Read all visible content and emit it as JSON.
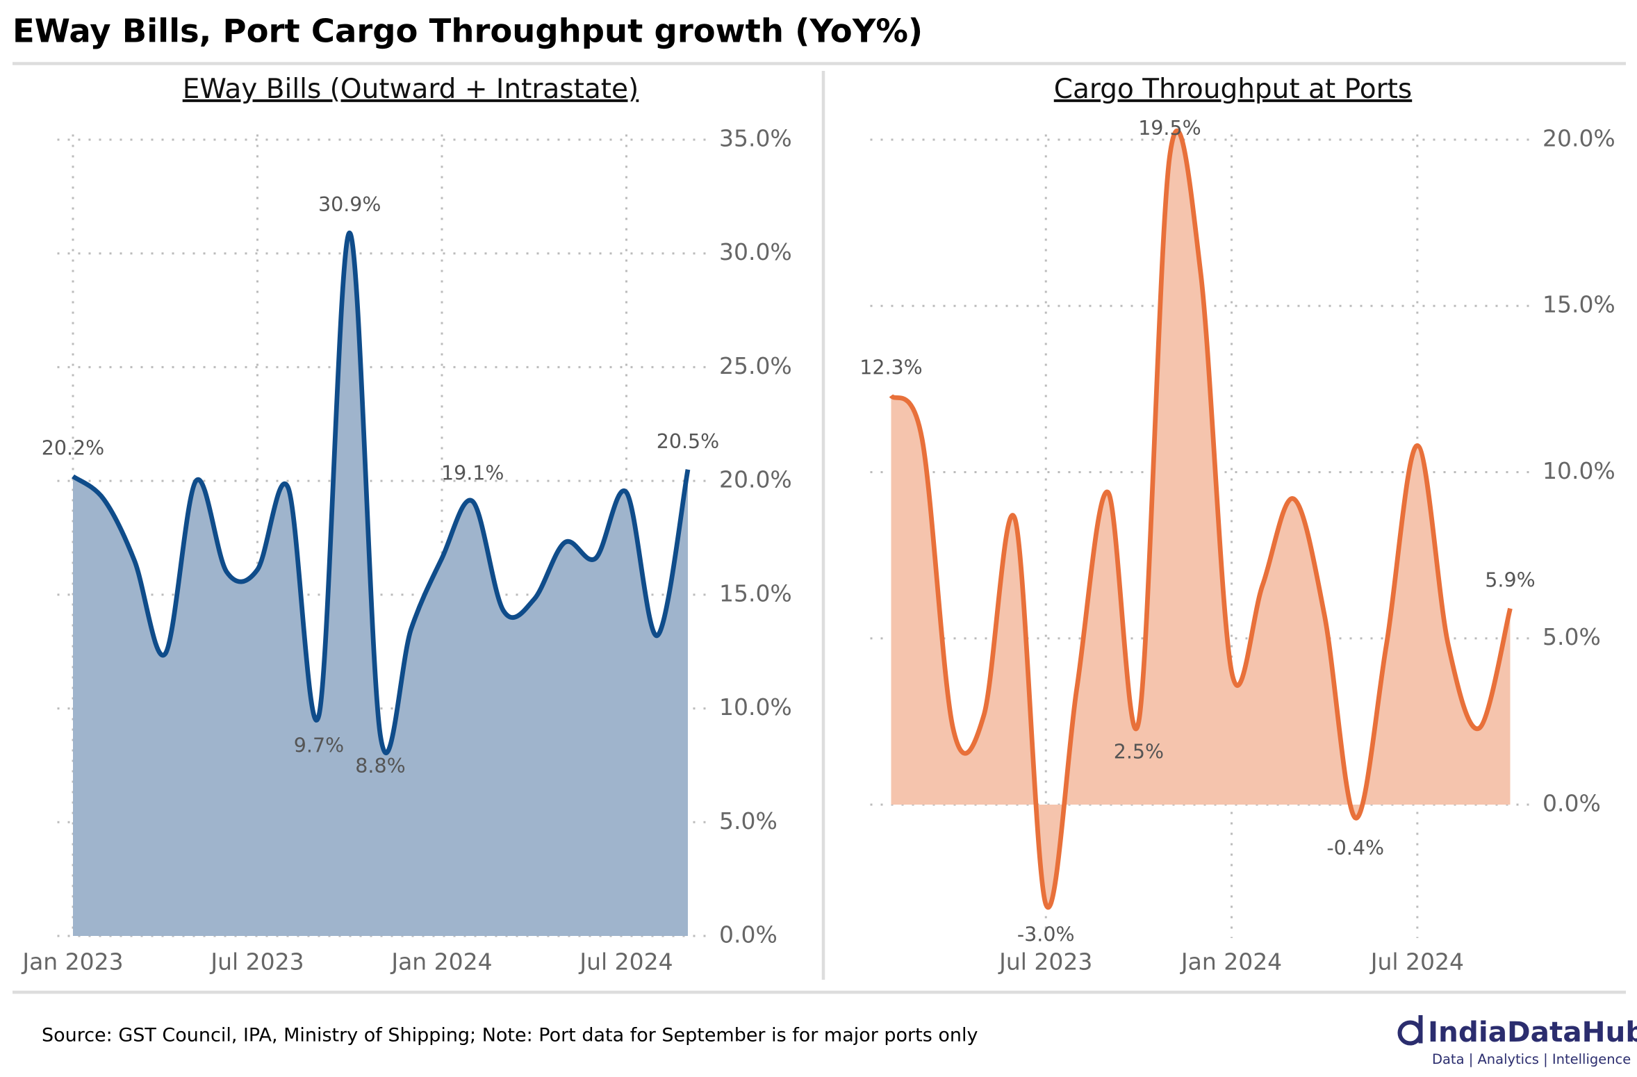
{
  "title": "EWay Bills, Port Cargo Throughput growth (YoY%)",
  "source": "Source: GST Council, IPA, Ministry of Shipping; Note: Port data for September is for major ports only",
  "logo": {
    "name": "IndiaDataHub",
    "tagline": "Data | Analytics | Intelligence"
  },
  "chart_data": [
    {
      "type": "area",
      "title": "EWay Bills (Outward + Intrastate)",
      "categories": [
        "Jan 2023",
        null,
        null,
        null,
        null,
        null,
        "Jul 2023",
        null,
        null,
        null,
        null,
        null,
        "Jan 2024",
        null,
        null,
        null,
        null,
        null,
        "Jul 2024",
        null,
        null
      ],
      "series": [
        {
          "name": "EWay Bills",
          "color": "#0f4c8a",
          "fill": "#9fb4cc",
          "values": [
            20.2,
            19.2,
            16.5,
            12.4,
            20.0,
            16.0,
            16.1,
            19.7,
            9.7,
            30.9,
            8.8,
            13.5,
            16.6,
            19.1,
            14.3,
            14.8,
            17.3,
            16.6,
            19.5,
            13.2,
            20.5
          ],
          "value_labels": [
            "20.2%",
            null,
            null,
            null,
            null,
            null,
            null,
            null,
            "9.7%",
            "30.9%",
            "8.8%",
            null,
            null,
            "19.1%",
            null,
            null,
            null,
            null,
            null,
            null,
            "20.5%"
          ]
        }
      ],
      "ylim": [
        0,
        35
      ],
      "yticks": [
        {
          "value": 0,
          "label": "0.0%"
        },
        {
          "value": 5,
          "label": "5.0%"
        },
        {
          "value": 10,
          "label": "10.0%"
        },
        {
          "value": 15,
          "label": "15.0%"
        },
        {
          "value": 20,
          "label": "20.0%"
        },
        {
          "value": 25,
          "label": "25.0%"
        },
        {
          "value": 30,
          "label": "30.0%"
        },
        {
          "value": 35,
          "label": "35.0%"
        }
      ],
      "grid": true
    },
    {
      "type": "area",
      "title": "Cargo Throughput at Ports",
      "categories": [
        null,
        null,
        null,
        null,
        null,
        "Jul 2023",
        null,
        null,
        null,
        null,
        null,
        "Jan 2024",
        null,
        null,
        null,
        null,
        null,
        "Jul 2024",
        null,
        null,
        null
      ],
      "series": [
        {
          "name": "Cargo Throughput",
          "color": "#e8703a",
          "fill": "#f5c4ad",
          "values": [
            12.3,
            11.0,
            2.3,
            2.7,
            8.6,
            -3.0,
            3.5,
            9.4,
            2.5,
            19.5,
            16.0,
            4.0,
            6.6,
            9.2,
            5.7,
            -0.4,
            4.8,
            10.8,
            4.8,
            2.3,
            5.9
          ],
          "value_labels": [
            "12.3%",
            null,
            null,
            null,
            null,
            "-3.0%",
            null,
            null,
            "2.5%",
            "19.5%",
            null,
            null,
            null,
            null,
            null,
            "-0.4%",
            null,
            null,
            null,
            null,
            "5.9%"
          ]
        }
      ],
      "ylim": [
        -4,
        20
      ],
      "yticks": [
        {
          "value": 0,
          "label": "0.0%"
        },
        {
          "value": 5,
          "label": "5.0%"
        },
        {
          "value": 10,
          "label": "10.0%"
        },
        {
          "value": 15,
          "label": "15.0%"
        },
        {
          "value": 20,
          "label": "20.0%"
        }
      ],
      "grid": true
    }
  ]
}
